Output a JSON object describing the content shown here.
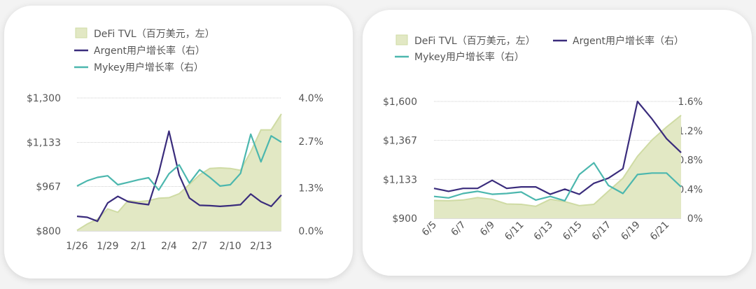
{
  "colors": {
    "tvl_fill": "#e2e8c4",
    "tvl_stroke": "#cfdba4",
    "argent": "#3a2c7c",
    "mykey": "#4cb7ae",
    "grid": "#cfcfcf"
  },
  "chart_data": [
    {
      "type": "line",
      "legend": {
        "placement": "top-left",
        "entries": [
          "DeFi TVL（百万美元，左）",
          "Argent用户增长率（右）",
          "Mykey用户增长率（右）"
        ]
      },
      "x": [
        "1/26",
        "1/27",
        "1/28",
        "1/29",
        "1/30",
        "1/31",
        "2/1",
        "2/2",
        "2/3",
        "2/4",
        "2/5",
        "2/6",
        "2/7",
        "2/8",
        "2/9",
        "2/10",
        "2/11",
        "2/12",
        "2/13",
        "2/14",
        "2/15"
      ],
      "x_tick_labels": [
        "1/26",
        "1/29",
        "2/1",
        "2/4",
        "2/7",
        "2/10",
        "2/13"
      ],
      "y_left": {
        "range": [
          800,
          1300
        ],
        "ticks": [
          800,
          967,
          1133,
          1300
        ],
        "tick_labels": [
          "$800",
          "$967",
          "$1,133",
          "$1,300"
        ]
      },
      "y_right": {
        "range": [
          0,
          4.0
        ],
        "ticks": [
          0,
          1.3,
          2.7,
          4.0
        ],
        "tick_labels": [
          "0.0%",
          "1.3%",
          "2.7%",
          "4.0%"
        ]
      },
      "grid": true,
      "series": [
        {
          "name": "DeFi TVL（百万美元，左）",
          "type": "area",
          "axis": "left",
          "values": [
            802,
            826,
            844,
            883,
            870,
            914,
            910,
            914,
            923,
            925,
            940,
            975,
            1011,
            1035,
            1037,
            1035,
            1028,
            1098,
            1180,
            1180,
            1240
          ]
        },
        {
          "name": "Argent用户增长率（右）",
          "type": "line",
          "axis": "right",
          "values": [
            0.44,
            0.41,
            0.29,
            0.84,
            1.04,
            0.88,
            0.83,
            0.79,
            1.75,
            3.0,
            1.68,
            0.99,
            0.77,
            0.76,
            0.74,
            0.76,
            0.79,
            1.11,
            0.88,
            0.74,
            1.08
          ]
        },
        {
          "name": "Mykey用户增长率（右）",
          "type": "line",
          "axis": "right",
          "values": [
            1.35,
            1.51,
            1.61,
            1.66,
            1.39,
            1.46,
            1.54,
            1.6,
            1.23,
            1.72,
            1.99,
            1.44,
            1.84,
            1.61,
            1.35,
            1.39,
            1.73,
            2.91,
            2.08,
            2.86,
            2.67
          ]
        }
      ]
    },
    {
      "type": "line",
      "legend": {
        "placement": "top",
        "entries": [
          "DeFi TVL（百万美元，左）",
          "Argent用户增长率（右）",
          "Mykey用户增长率（右）"
        ]
      },
      "x": [
        "6/5",
        "6/6",
        "6/7",
        "6/8",
        "6/9",
        "6/10",
        "6/11",
        "6/12",
        "6/13",
        "6/14",
        "6/15",
        "6/16",
        "6/17",
        "6/18",
        "6/19",
        "6/20",
        "6/21",
        "6/22"
      ],
      "x_tick_labels": [
        "6/5",
        "6/7",
        "6/9",
        "6/11",
        "6/13",
        "6/15",
        "6/17",
        "6/19",
        "6/21"
      ],
      "y_left": {
        "range": [
          900,
          1600
        ],
        "ticks": [
          900,
          1133,
          1367,
          1600
        ],
        "tick_labels": [
          "$900",
          "$1,133",
          "$1,367",
          "$1,600"
        ]
      },
      "y_right": {
        "range": [
          0,
          1.6
        ],
        "ticks": [
          0,
          0.4,
          0.8,
          1.2,
          1.6
        ],
        "tick_labels": [
          "0%",
          "0.4%",
          "0.8%",
          "1.2%",
          "1.6%"
        ]
      },
      "grid": true,
      "series": [
        {
          "name": "DeFi TVL（百万美元，左）",
          "type": "area",
          "axis": "left",
          "values": [
            1007,
            1005,
            1010,
            1024,
            1014,
            986,
            984,
            972,
            1014,
            1000,
            976,
            984,
            1063,
            1140,
            1272,
            1370,
            1447,
            1517
          ]
        },
        {
          "name": "Argent用户增长率（右）",
          "type": "line",
          "axis": "right",
          "values": [
            0.41,
            0.37,
            0.41,
            0.41,
            0.52,
            0.41,
            0.43,
            0.43,
            0.33,
            0.4,
            0.33,
            0.48,
            0.55,
            0.68,
            1.6,
            1.36,
            1.09,
            0.9
          ]
        },
        {
          "name": "Mykey用户增长率（右）",
          "type": "line",
          "axis": "right",
          "values": [
            0.3,
            0.28,
            0.34,
            0.37,
            0.33,
            0.34,
            0.36,
            0.25,
            0.3,
            0.24,
            0.6,
            0.76,
            0.45,
            0.34,
            0.6,
            0.62,
            0.62,
            0.43
          ]
        }
      ]
    }
  ]
}
